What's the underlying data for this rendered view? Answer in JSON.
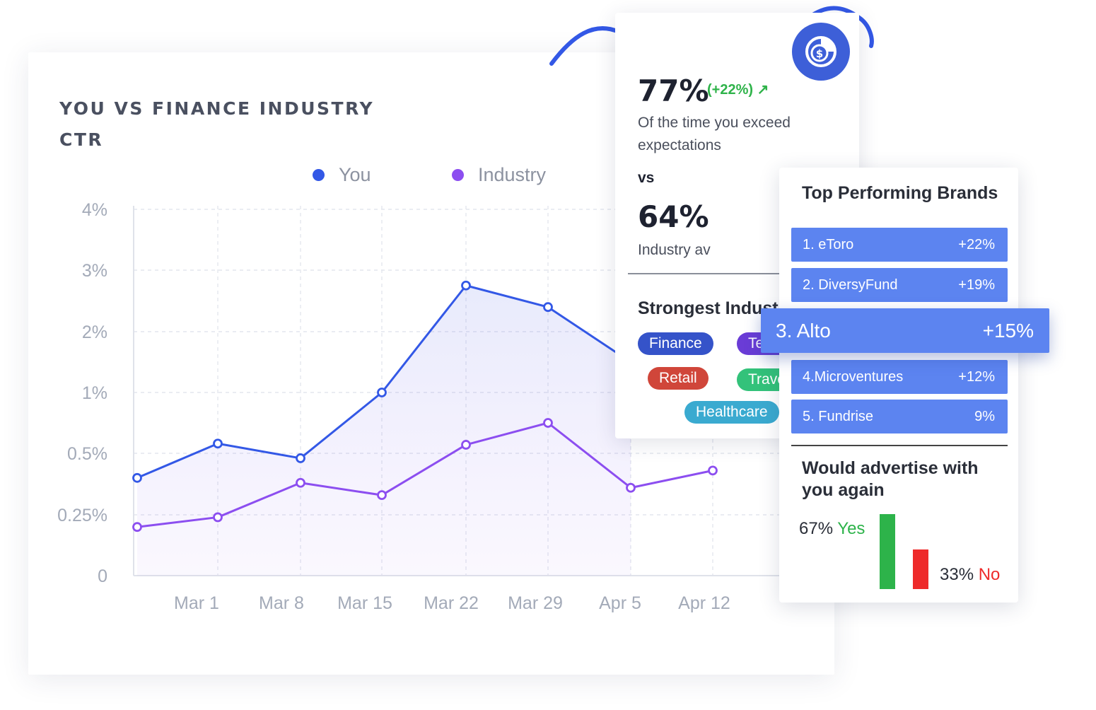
{
  "chart_data": {
    "type": "line",
    "title": "YOU VS FINANCE INDUSTRY CTR",
    "categories": [
      "",
      "Mar 1",
      "Mar 8",
      "Mar 15",
      "Mar 22",
      "Mar 29",
      "Apr 5",
      "Apr 12"
    ],
    "x_tick_labels": [
      "Mar 1",
      "Mar 8",
      "Mar 15",
      "Mar 22",
      "Mar 29",
      "Apr 5",
      "Apr 12"
    ],
    "y_tick_labels": [
      "0",
      "0.25%",
      "0.5%",
      "1%",
      "2%",
      "3%",
      "4%"
    ],
    "series": [
      {
        "name": "You",
        "color": "#3358e6",
        "values": [
          0.4,
          0.58,
          0.48,
          1.0,
          2.75,
          2.4,
          1.5,
          null
        ]
      },
      {
        "name": "Industry",
        "color": "#8c4ef0",
        "values": [
          0.2,
          0.24,
          0.38,
          0.33,
          0.57,
          0.75,
          0.36,
          0.43
        ]
      }
    ],
    "legend_position": "top-center",
    "grid": true,
    "area_fill": true
  },
  "stats": {
    "you_pct": "77%",
    "you_change": "(+22%) ↗",
    "you_desc": "Of the time you exceed expectations",
    "vs_label": "vs",
    "industry_pct": "64%",
    "industry_desc": "Industry av",
    "strongest_title": "Strongest Industries",
    "chips": [
      {
        "label": "Finance",
        "color": "#3553c9"
      },
      {
        "label": "Tech",
        "color": "#6a3cd6"
      },
      {
        "label": "Retail",
        "color": "#d0463a"
      },
      {
        "label": "Travel",
        "color": "#33c27a"
      },
      {
        "label": "Healthcare",
        "color": "#3aaad0"
      }
    ],
    "icon": "coin-chart-icon"
  },
  "brands": {
    "title": "Top Performing Brands",
    "rows": [
      {
        "name": "1. eToro",
        "change": "+22%"
      },
      {
        "name": "2. DiversyFund",
        "change": "+19%"
      },
      {
        "name": "3. Alto",
        "change": "+15%"
      },
      {
        "name": "4.Microventures",
        "change": "+12%"
      },
      {
        "name": "5. Fundrise",
        "change": "9%"
      }
    ],
    "advertise_title": "Would advertise with you again",
    "yes_pct": "67%",
    "yes_label": "Yes",
    "no_pct": "33%",
    "no_label": "No",
    "yes_value": 67,
    "no_value": 33,
    "yes_color": "#2db34a",
    "no_color": "#ee2a2a"
  }
}
